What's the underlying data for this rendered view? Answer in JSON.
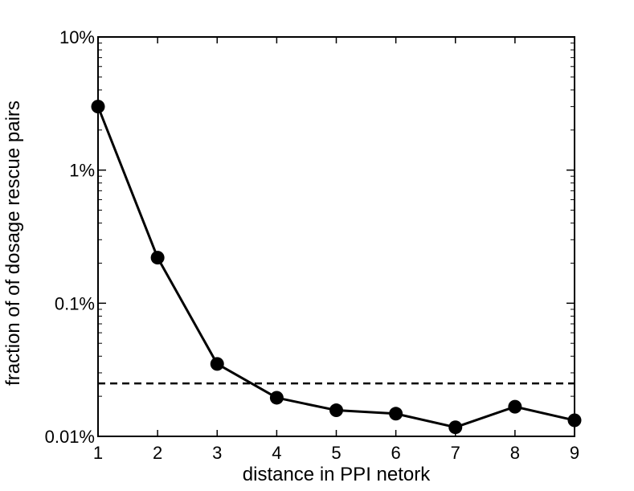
{
  "chart_data": {
    "type": "line",
    "title": "",
    "xlabel": "distance in PPI netork",
    "ylabel": "fraction of of dosage rescue pairs",
    "xlim": [
      1,
      9
    ],
    "ylim": [
      0.01,
      10
    ],
    "yscale": "log",
    "unit": "%",
    "x_ticks": [
      1,
      2,
      3,
      4,
      5,
      6,
      7,
      8,
      9
    ],
    "y_ticks": [
      0.01,
      0.1,
      1,
      10
    ],
    "y_tick_labels": [
      "0.01%",
      "0.1%",
      "1%",
      "10%"
    ],
    "grid": false,
    "legend": "none",
    "series": [
      {
        "x": [
          1,
          2,
          3,
          4,
          5,
          6,
          7,
          8,
          9
        ],
        "y": [
          3.0,
          0.22,
          0.035,
          0.0195,
          0.0157,
          0.0148,
          0.0117,
          0.0167,
          0.0132
        ],
        "style": "solid",
        "marker": "circle",
        "color": "#000000"
      }
    ],
    "reference_lines": [
      {
        "orientation": "horizontal",
        "y": 0.025,
        "style": "dashed",
        "color": "#000000"
      }
    ]
  }
}
